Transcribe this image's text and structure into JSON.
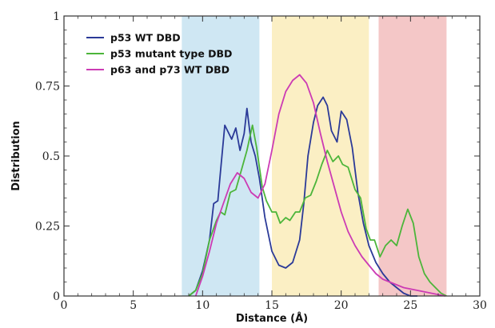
{
  "chart_data": {
    "type": "line",
    "title": "",
    "xlabel": "Distance (Å)",
    "ylabel": "Distribution",
    "xlim": [
      0,
      30
    ],
    "ylim": [
      0,
      1
    ],
    "xticks": [
      0,
      5,
      10,
      15,
      20,
      25,
      30
    ],
    "xtick_labels": [
      "0",
      "5",
      "10",
      "15",
      "20",
      "25",
      "30"
    ],
    "yticks": [
      0,
      0.25,
      0.5,
      0.75,
      1
    ],
    "ytick_labels": [
      "0",
      "0.25",
      "0.5",
      "0.75",
      "1"
    ],
    "grid": false,
    "legend_position": "top-left",
    "bands": [
      {
        "x0": 8.5,
        "x1": 14.1,
        "color": "#cfe7f3"
      },
      {
        "x0": 15.0,
        "x1": 22.0,
        "color": "#fbefc4"
      },
      {
        "x0": 22.7,
        "x1": 27.6,
        "color": "#f4c7c7"
      }
    ],
    "series": [
      {
        "name": "p53 WT DBD",
        "color": "#2b3a98",
        "x": [
          9,
          9.5,
          10,
          10.5,
          10.8,
          11.1,
          11.3,
          11.6,
          11.9,
          12.1,
          12.4,
          12.7,
          13,
          13.2,
          13.5,
          13.8,
          14.1,
          14.5,
          15,
          15.5,
          16,
          16.5,
          17,
          17.3,
          17.6,
          18,
          18.3,
          18.7,
          19,
          19.3,
          19.7,
          20,
          20.4,
          20.8,
          21.2,
          21.6,
          22,
          22.5,
          23,
          23.5,
          24,
          24.5,
          25,
          25.5
        ],
        "y": [
          0,
          0.02,
          0.09,
          0.2,
          0.33,
          0.34,
          0.45,
          0.61,
          0.58,
          0.56,
          0.6,
          0.52,
          0.58,
          0.67,
          0.55,
          0.5,
          0.42,
          0.28,
          0.16,
          0.11,
          0.1,
          0.12,
          0.2,
          0.33,
          0.5,
          0.62,
          0.68,
          0.71,
          0.68,
          0.59,
          0.55,
          0.66,
          0.63,
          0.53,
          0.37,
          0.26,
          0.18,
          0.12,
          0.08,
          0.05,
          0.03,
          0.01,
          0,
          0
        ]
      },
      {
        "name": "p53 mutant type DBD",
        "color": "#4cb53a",
        "x": [
          9,
          9.5,
          10,
          10.5,
          11,
          11.3,
          11.6,
          12,
          12.4,
          12.8,
          13.2,
          13.6,
          13.9,
          14.3,
          14.6,
          15,
          15.3,
          15.6,
          16,
          16.3,
          16.7,
          17,
          17.4,
          17.8,
          18.2,
          18.6,
          19,
          19.4,
          19.8,
          20.1,
          20.5,
          21,
          21.4,
          21.8,
          22.1,
          22.4,
          22.8,
          23.2,
          23.6,
          24,
          24.4,
          24.8,
          25.2,
          25.6,
          26,
          26.4,
          26.8,
          27.2,
          27.6
        ],
        "y": [
          0,
          0.02,
          0.08,
          0.2,
          0.27,
          0.3,
          0.29,
          0.37,
          0.38,
          0.45,
          0.52,
          0.61,
          0.53,
          0.39,
          0.34,
          0.3,
          0.3,
          0.26,
          0.28,
          0.27,
          0.3,
          0.3,
          0.35,
          0.36,
          0.41,
          0.47,
          0.52,
          0.48,
          0.5,
          0.47,
          0.46,
          0.38,
          0.35,
          0.24,
          0.2,
          0.2,
          0.14,
          0.18,
          0.2,
          0.18,
          0.25,
          0.31,
          0.26,
          0.14,
          0.08,
          0.05,
          0.03,
          0.01,
          0
        ]
      },
      {
        "name": "p63 and p73 WT DBD",
        "color": "#cc3bb4",
        "x": [
          9.5,
          10,
          10.5,
          11,
          11.5,
          12,
          12.5,
          13,
          13.5,
          14,
          14.5,
          15,
          15.5,
          16,
          16.5,
          17,
          17.5,
          18,
          18.5,
          19,
          19.5,
          20,
          20.5,
          21,
          21.5,
          22,
          22.5,
          23,
          23.5,
          24,
          24.5,
          25,
          25.5,
          26,
          26.5,
          27,
          27.5
        ],
        "y": [
          0,
          0.07,
          0.16,
          0.26,
          0.33,
          0.4,
          0.44,
          0.42,
          0.37,
          0.35,
          0.4,
          0.52,
          0.65,
          0.73,
          0.77,
          0.79,
          0.76,
          0.69,
          0.58,
          0.48,
          0.39,
          0.3,
          0.23,
          0.18,
          0.14,
          0.11,
          0.08,
          0.06,
          0.05,
          0.04,
          0.03,
          0.025,
          0.02,
          0.015,
          0.01,
          0.005,
          0
        ]
      }
    ]
  }
}
